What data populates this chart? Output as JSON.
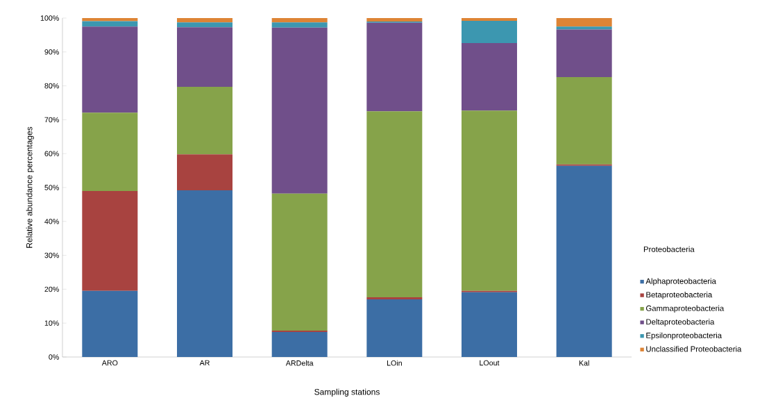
{
  "chart_data": {
    "type": "bar",
    "stacked": true,
    "xlabel": "Sampling stations",
    "ylabel": "Relative abundance percentages",
    "legend_title": "Proteobacteria",
    "legend": "right",
    "categories": [
      "ARO",
      "AR",
      "ARDelta",
      "LOin",
      "LOout",
      "Kal"
    ],
    "ylim": [
      0,
      100
    ],
    "yticks": [
      {
        "value": 0,
        "label": "0%"
      },
      {
        "value": 10,
        "label": "10%"
      },
      {
        "value": 20,
        "label": "20%"
      },
      {
        "value": 30,
        "label": "30%"
      },
      {
        "value": 40,
        "label": "40%"
      },
      {
        "value": 50,
        "label": "50%"
      },
      {
        "value": 60,
        "label": "60%"
      },
      {
        "value": 70,
        "label": "70%"
      },
      {
        "value": 80,
        "label": "80%"
      },
      {
        "value": 90,
        "label": "90%"
      },
      {
        "value": 100,
        "label": "100%"
      }
    ],
    "series": [
      {
        "name": "Alphaproteobacteria",
        "color": "#3c6ea5",
        "values": [
          19.5,
          49.2,
          7.4,
          17.0,
          19.1,
          56.4
        ]
      },
      {
        "name": "Betaproteobacteria",
        "color": "#a84340",
        "values": [
          29.5,
          10.6,
          0.4,
          0.6,
          0.4,
          0.4
        ]
      },
      {
        "name": "Gammaproteobacteria",
        "color": "#86a34a",
        "values": [
          23.1,
          19.9,
          40.4,
          54.9,
          53.2,
          25.8
        ]
      },
      {
        "name": "Deltaproteobacteria",
        "color": "#704f8a",
        "values": [
          25.4,
          17.6,
          49.0,
          26.1,
          19.9,
          14.0
        ]
      },
      {
        "name": "Epsilonproteobacteria",
        "color": "#3c97b0",
        "values": [
          1.6,
          1.4,
          1.5,
          0.4,
          6.6,
          0.9
        ]
      },
      {
        "name": "Unclassified Proteobacteria",
        "color": "#dd8435",
        "values": [
          0.9,
          1.3,
          1.3,
          1.0,
          0.8,
          2.5
        ]
      }
    ]
  }
}
